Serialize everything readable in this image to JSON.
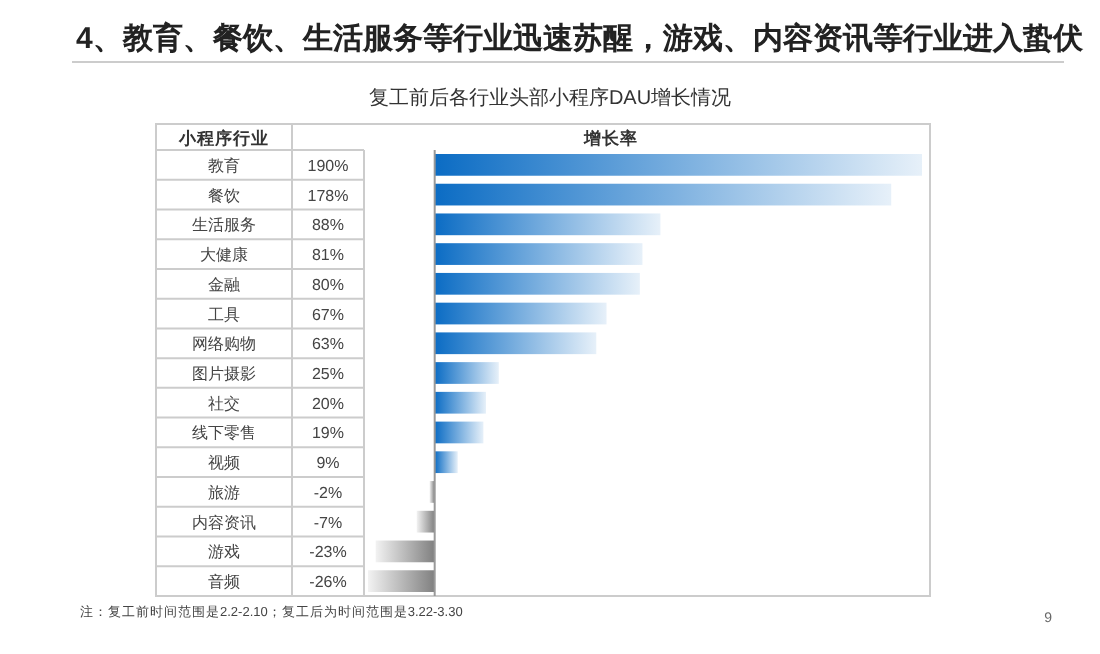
{
  "chart_data": {
    "type": "bar",
    "orientation": "horizontal",
    "title": "4、教育、餐饮、生活服务等行业迅速苏醒，游戏、内容资讯等行业进入蛰伏",
    "subtitle": "复工前后各行业头部小程序DAU增长情况",
    "ylabel": "小程序行业",
    "xlabel": "增长率",
    "categories": [
      "教育",
      "餐饮",
      "生活服务",
      "大健康",
      "金融",
      "工具",
      "网络购物",
      "图片摄影",
      "社交",
      "线下零售",
      "视频",
      "旅游",
      "内容资讯",
      "游戏",
      "音频"
    ],
    "values": [
      190,
      178,
      88,
      81,
      80,
      67,
      63,
      25,
      20,
      19,
      9,
      -2,
      -7,
      -23,
      -26
    ],
    "value_labels": [
      "190%",
      "178%",
      "88%",
      "81%",
      "80%",
      "67%",
      "63%",
      "25%",
      "20%",
      "19%",
      "9%",
      "-2%",
      "-7%",
      "-23%",
      "-26%"
    ],
    "colors": [
      "#0b6cc4",
      "#0b6cc4",
      "#0b6cc4",
      "#0b6cc4",
      "#0b6cc4",
      "#0b6cc4",
      "#0b6cc4",
      "#0b6cc4",
      "#0b6cc4",
      "#0b6cc4",
      "#0b6cc4",
      "#808080",
      "#808080",
      "#808080",
      "#808080"
    ],
    "relative": false,
    "annotations": [
      "注：复工前时间范围是2.2-2.10；复工后为时间范围是3.22-3.30",
      "9"
    ]
  }
}
